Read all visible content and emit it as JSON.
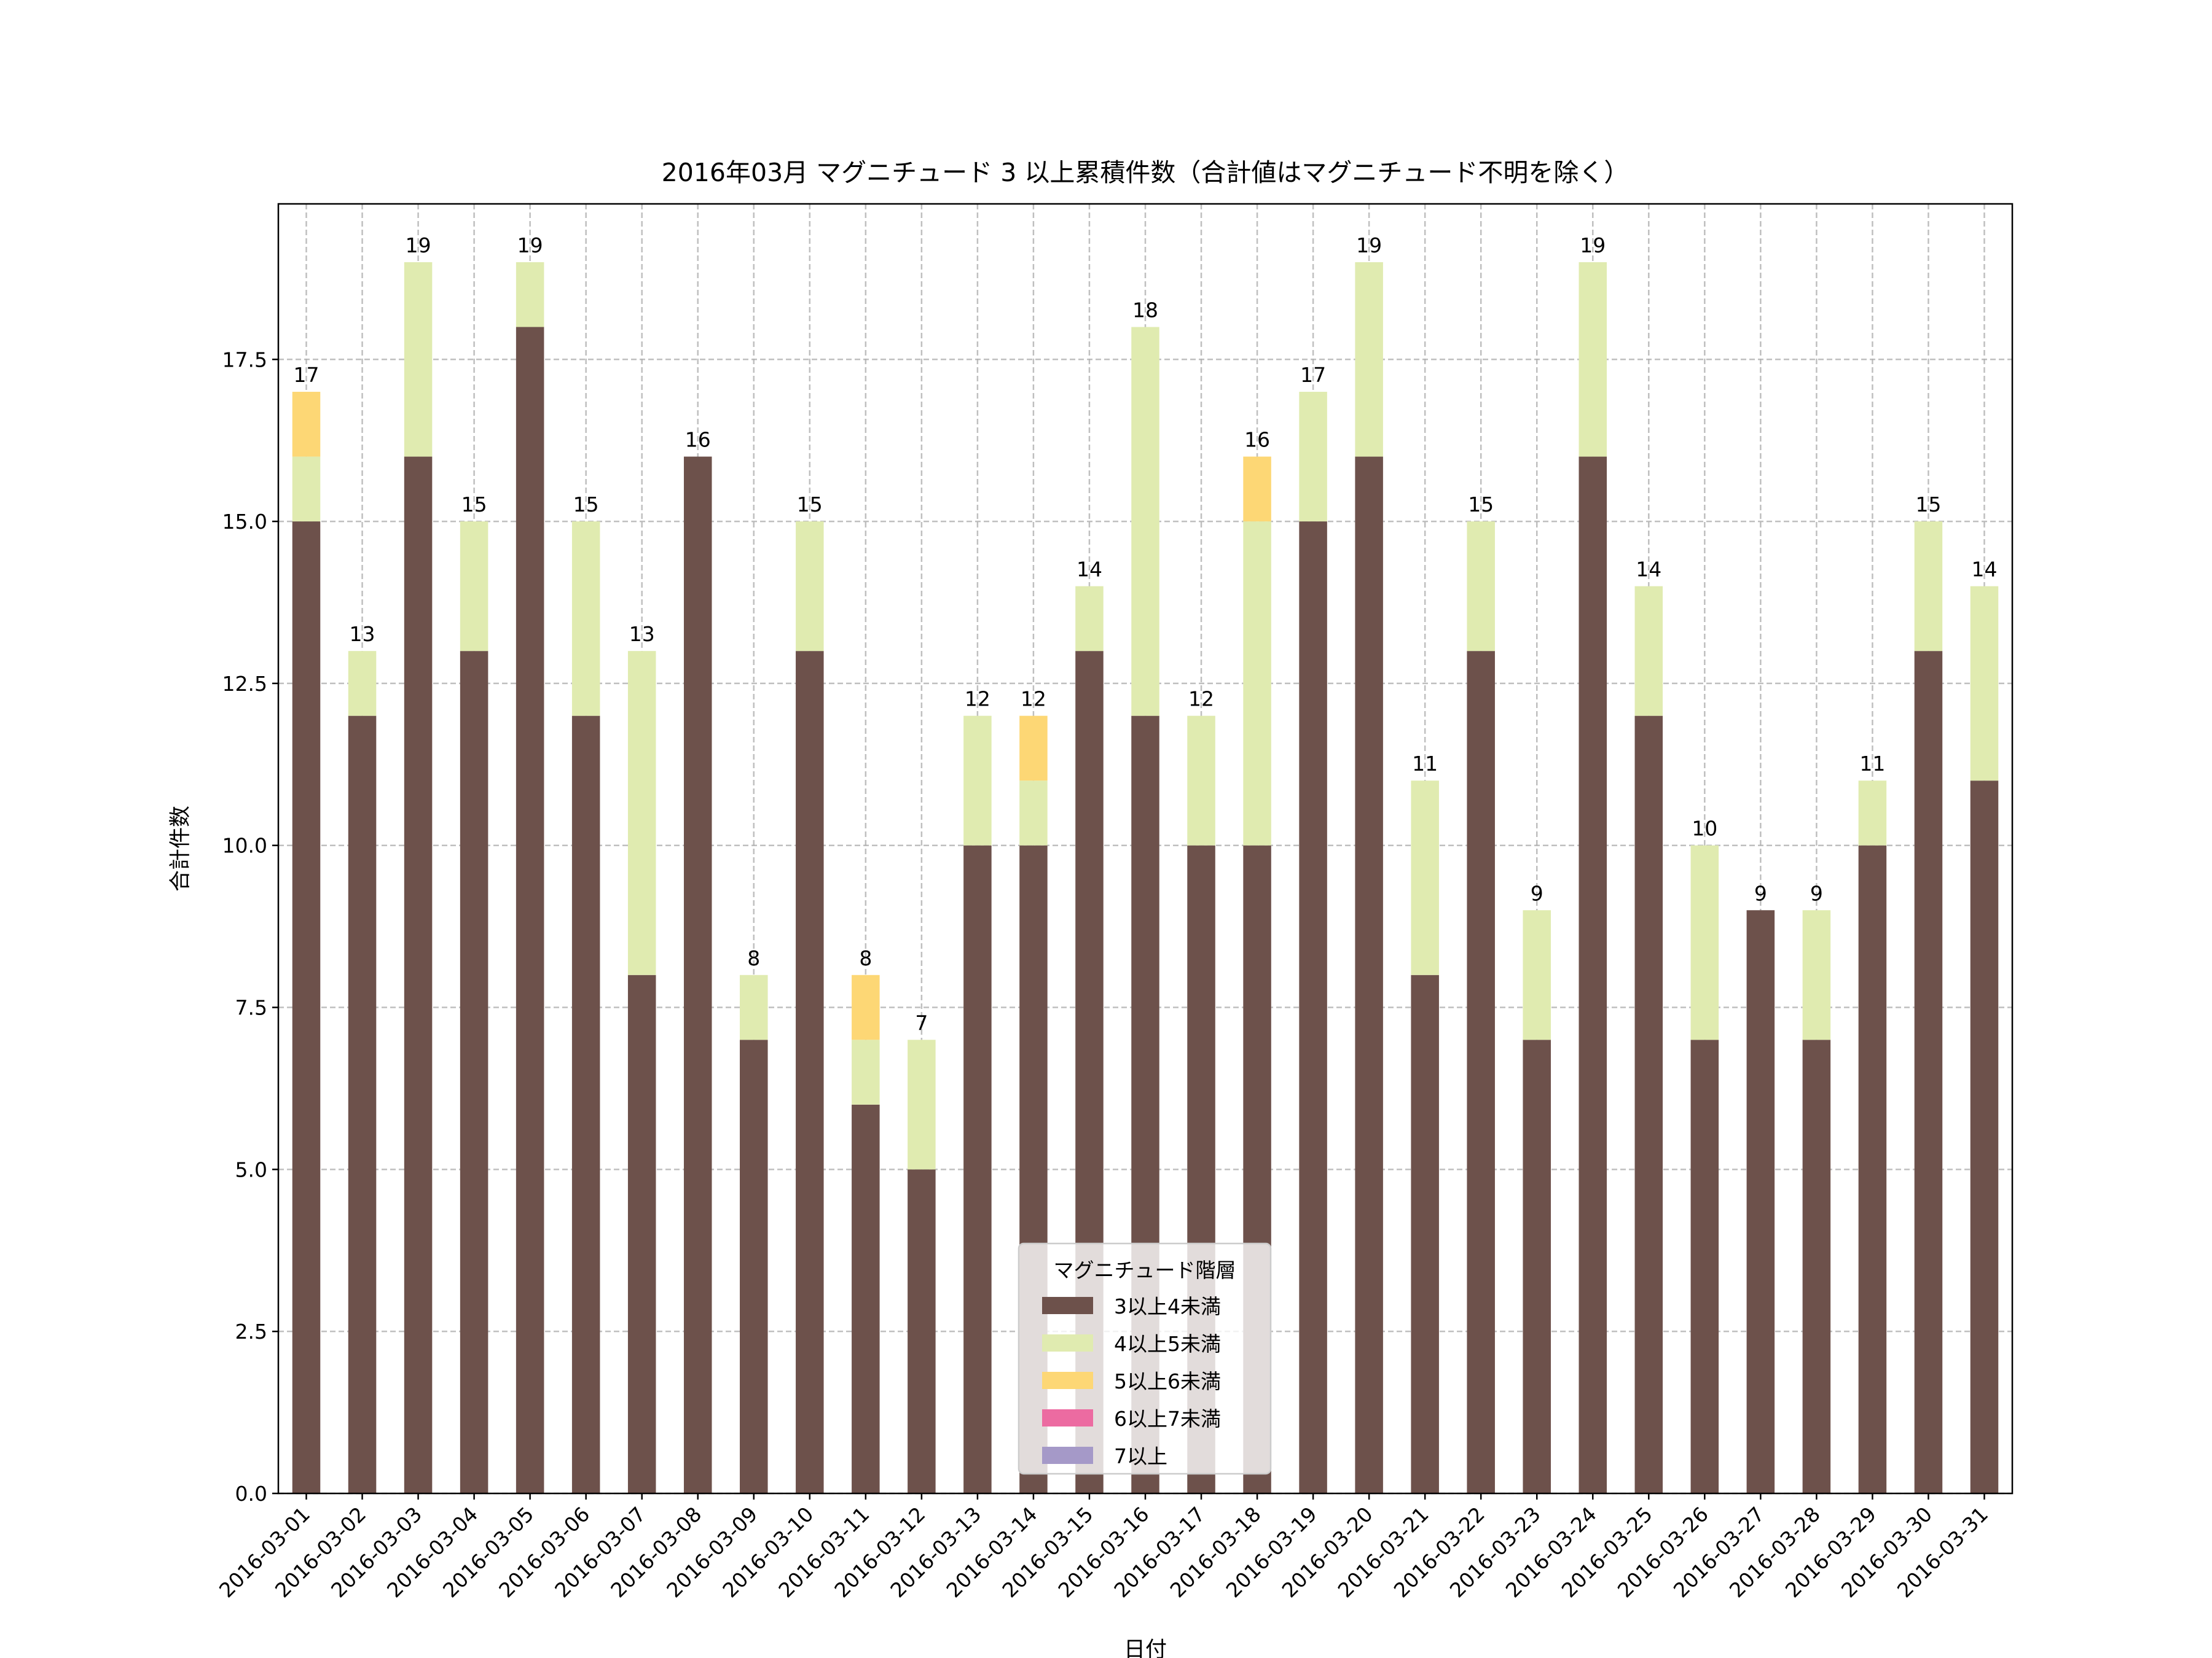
{
  "chart_data": {
    "type": "bar",
    "stacked": true,
    "title": "2016年03月 マグニチュード 3 以上累積件数（合計値はマグニチュード不明を除く）",
    "xlabel": "日付",
    "ylabel": "合計件数",
    "ylim": [
      0,
      19.9
    ],
    "yticks": [
      "0.0",
      "2.5",
      "5.0",
      "7.5",
      "10.0",
      "12.5",
      "15.0",
      "17.5"
    ],
    "grid": true,
    "legend": {
      "title": "マグニチュード階層",
      "placement": "bottom-center"
    },
    "categories": [
      "2016-03-01",
      "2016-03-02",
      "2016-03-03",
      "2016-03-04",
      "2016-03-05",
      "2016-03-06",
      "2016-03-07",
      "2016-03-08",
      "2016-03-09",
      "2016-03-10",
      "2016-03-11",
      "2016-03-12",
      "2016-03-13",
      "2016-03-14",
      "2016-03-15",
      "2016-03-16",
      "2016-03-17",
      "2016-03-18",
      "2016-03-19",
      "2016-03-20",
      "2016-03-21",
      "2016-03-22",
      "2016-03-23",
      "2016-03-24",
      "2016-03-25",
      "2016-03-26",
      "2016-03-27",
      "2016-03-28",
      "2016-03-29",
      "2016-03-30",
      "2016-03-31"
    ],
    "series": [
      {
        "name": "3以上4未満",
        "color": "#6d514b",
        "values": [
          15,
          12,
          16,
          13,
          18,
          12,
          8,
          16,
          7,
          13,
          6,
          5,
          10,
          10,
          13,
          12,
          10,
          10,
          15,
          16,
          8,
          13,
          7,
          16,
          12,
          7,
          9,
          7,
          10,
          13,
          11
        ]
      },
      {
        "name": "4以上5未満",
        "color": "#e0ebb0",
        "values": [
          1,
          1,
          3,
          2,
          1,
          3,
          5,
          0,
          1,
          2,
          1,
          2,
          2,
          1,
          1,
          6,
          2,
          5,
          2,
          3,
          3,
          2,
          2,
          3,
          2,
          3,
          0,
          2,
          1,
          2,
          3
        ]
      },
      {
        "name": "5以上6未満",
        "color": "#fdd775",
        "values": [
          1,
          0,
          0,
          0,
          0,
          0,
          0,
          0,
          0,
          0,
          1,
          0,
          0,
          1,
          0,
          0,
          0,
          1,
          0,
          0,
          0,
          0,
          0,
          0,
          0,
          0,
          0,
          0,
          0,
          0,
          0
        ]
      },
      {
        "name": "6以上7未満",
        "color": "#ec6ba1",
        "values": [
          0,
          0,
          0,
          0,
          0,
          0,
          0,
          0,
          0,
          0,
          0,
          0,
          0,
          0,
          0,
          0,
          0,
          0,
          0,
          0,
          0,
          0,
          0,
          0,
          0,
          0,
          0,
          0,
          0,
          0,
          0
        ]
      },
      {
        "name": "7以上",
        "color": "#a599c8",
        "values": [
          0,
          0,
          0,
          0,
          0,
          0,
          0,
          0,
          0,
          0,
          0,
          0,
          0,
          0,
          0,
          0,
          0,
          0,
          0,
          0,
          0,
          0,
          0,
          0,
          0,
          0,
          0,
          0,
          0,
          0,
          0
        ]
      }
    ],
    "totals": [
      "17",
      "13",
      "19",
      "15",
      "19",
      "15",
      "13",
      "16",
      "8",
      "15",
      "8",
      "7",
      "12",
      "12",
      "14",
      "18",
      "12",
      "16",
      "17",
      "19",
      "11",
      "15",
      "9",
      "19",
      "14",
      "10",
      "9",
      "9",
      "11",
      "15",
      "14"
    ]
  }
}
